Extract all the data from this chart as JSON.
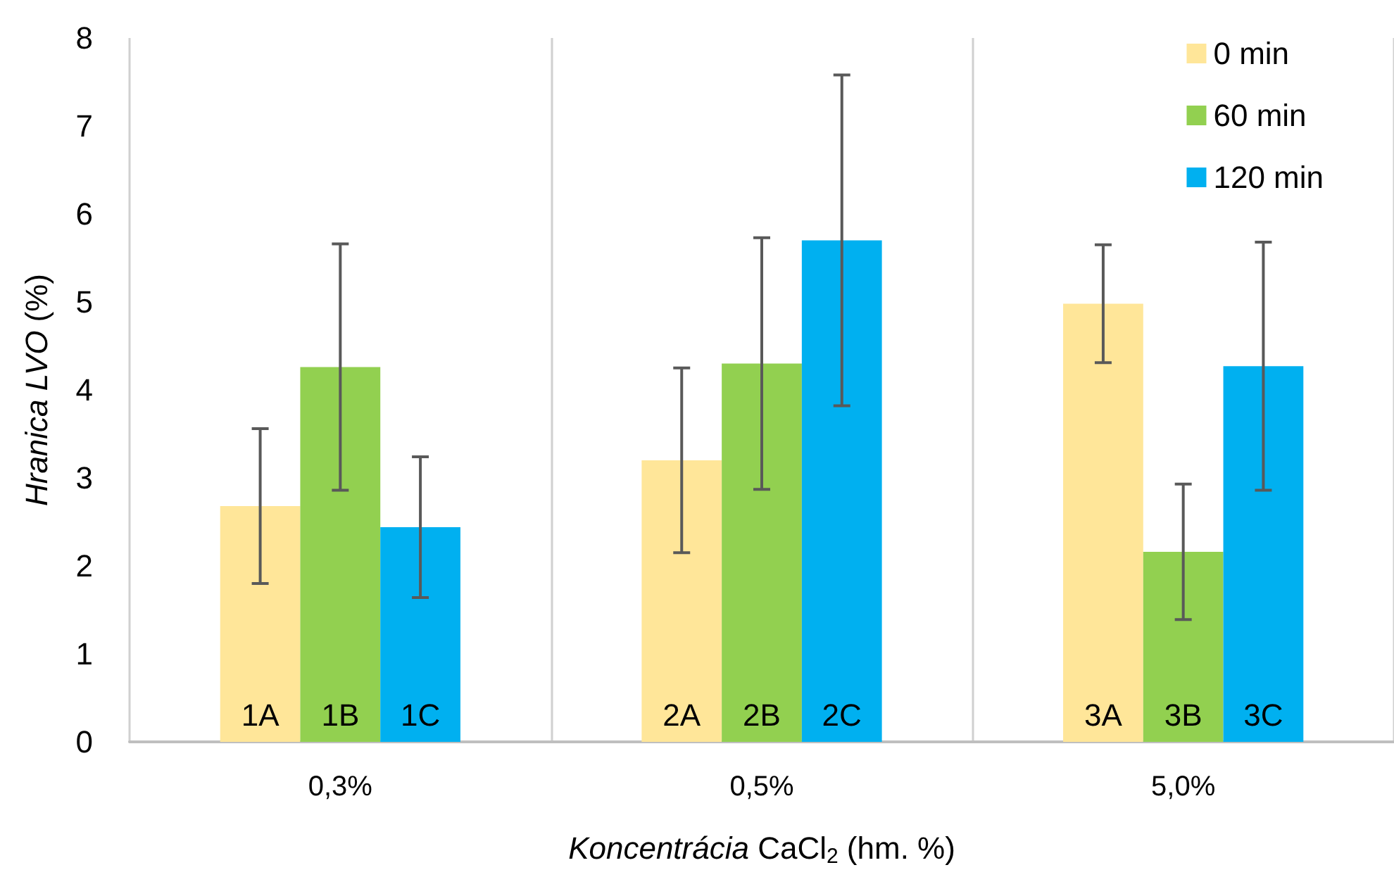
{
  "chart_data": {
    "type": "bar",
    "xlabel": "Koncentrácia CaCl$_{2}$ (hm. %)",
    "ylabel": "Hranica LVO (%)",
    "categories": [
      "0,3%",
      "0,5%",
      "5,0%"
    ],
    "series": [
      {
        "name": "0 min",
        "color": "#ffe699",
        "values": [
          2.68,
          3.2,
          4.98
        ],
        "errors": [
          0.88,
          1.05,
          0.67
        ]
      },
      {
        "name": "60 min",
        "color": "#92d050",
        "values": [
          4.26,
          4.3,
          2.16
        ],
        "errors": [
          1.4,
          1.43,
          0.77
        ]
      },
      {
        "name": "120 min",
        "color": "#00b0f0",
        "values": [
          2.44,
          5.7,
          4.27
        ],
        "errors": [
          0.8,
          1.88,
          1.41
        ]
      }
    ],
    "annotations": [
      "1A",
      "1B",
      "1C",
      "2A",
      "2B",
      "2C",
      "3A",
      "3B",
      "3C"
    ],
    "ylim": [
      0,
      8
    ],
    "yticks": [
      0,
      1,
      2,
      3,
      4,
      5,
      6,
      7,
      8
    ],
    "grid": "x",
    "legend": "top right"
  }
}
